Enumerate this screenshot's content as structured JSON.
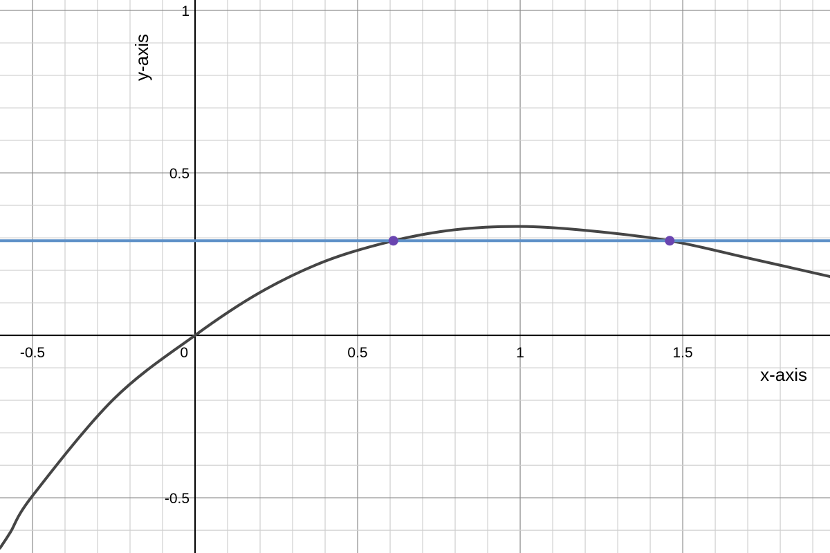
{
  "chart_data": {
    "type": "line",
    "xlabel": "x-axis",
    "ylabel": "y-axis",
    "xlim": [
      -0.6,
      1.953
    ],
    "ylim": [
      -0.67,
      1.032
    ],
    "grid": true,
    "minor_grid_step": 0.1,
    "major_grid_step": 0.5,
    "x_ticks": [
      "-0.5",
      "0",
      "0.5",
      "1",
      "1.5"
    ],
    "y_ticks": [
      "1",
      "0.5",
      "-0.5"
    ],
    "series": [
      {
        "kind": "curve",
        "color": "#454545",
        "points": [
          [
            -0.6,
            -0.655
          ],
          [
            -0.568,
            -0.606
          ],
          [
            -0.5,
            -0.494
          ],
          [
            -0.25,
            -0.196
          ],
          [
            0,
            0
          ],
          [
            0.2,
            0.132
          ],
          [
            0.4,
            0.228
          ],
          [
            0.61,
            0.291
          ],
          [
            0.8,
            0.325
          ],
          [
            1,
            0.335
          ],
          [
            1.2,
            0.323
          ],
          [
            1.46,
            0.291
          ],
          [
            1.7,
            0.238
          ],
          [
            1.953,
            0.181
          ]
        ]
      },
      {
        "kind": "horizontal-line",
        "color": "#5f91c8",
        "y": 0.291
      }
    ],
    "intersection_points": {
      "color": "#6a45b0",
      "points": [
        [
          0.61,
          0.291
        ],
        [
          1.46,
          0.291
        ]
      ]
    }
  }
}
